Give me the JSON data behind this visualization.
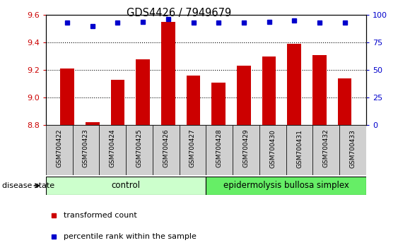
{
  "title": "GDS4426 / 7949679",
  "samples": [
    "GSM700422",
    "GSM700423",
    "GSM700424",
    "GSM700425",
    "GSM700426",
    "GSM700427",
    "GSM700428",
    "GSM700429",
    "GSM700430",
    "GSM700431",
    "GSM700432",
    "GSM700433"
  ],
  "bar_values": [
    9.21,
    8.82,
    9.13,
    9.28,
    9.55,
    9.16,
    9.11,
    9.23,
    9.3,
    9.39,
    9.31,
    9.14
  ],
  "percentile_values": [
    93,
    90,
    93,
    94,
    96,
    93,
    93,
    93,
    94,
    95,
    93,
    93
  ],
  "bar_color": "#cc0000",
  "dot_color": "#0000cc",
  "ylim_left": [
    8.8,
    9.6
  ],
  "ylim_right": [
    0,
    100
  ],
  "yticks_left": [
    8.8,
    9.0,
    9.2,
    9.4,
    9.6
  ],
  "yticks_right": [
    0,
    25,
    50,
    75,
    100
  ],
  "grid_vals": [
    9.0,
    9.2,
    9.4
  ],
  "control_samples": 6,
  "control_label": "control",
  "disease_label": "epidermolysis bullosa simplex",
  "disease_state_label": "disease state",
  "legend_bar_label": "transformed count",
  "legend_dot_label": "percentile rank within the sample",
  "control_color": "#ccffcc",
  "disease_color": "#66ee66",
  "tick_bg_color": "#d0d0d0",
  "bar_color_left": "#cc0000",
  "dot_color_right": "#0000cc",
  "bar_bottom": 8.8
}
